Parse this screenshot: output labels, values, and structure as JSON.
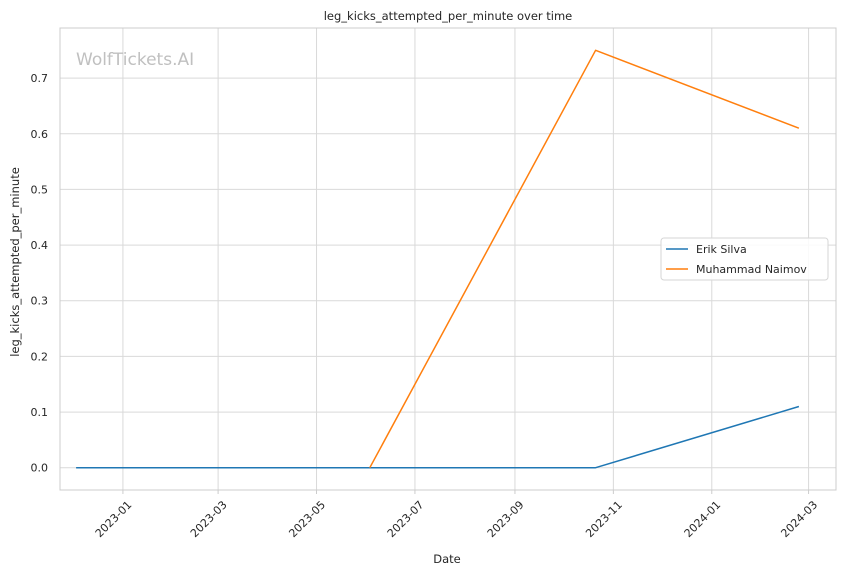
{
  "chart_data": {
    "type": "line",
    "title": "leg_kicks_attempted_per_minute over time",
    "xlabel": "Date",
    "ylabel": "leg_kicks_attempted_per_minute",
    "watermark": "WolfTickets.AI",
    "grid": true,
    "legend_position": "center-right",
    "xlim": [
      "2022-11-23",
      "2024-03-18"
    ],
    "ylim": [
      -0.04,
      0.79
    ],
    "x_ticks": [
      "2023-01-01",
      "2023-03-01",
      "2023-05-01",
      "2023-07-01",
      "2023-09-01",
      "2023-11-01",
      "2024-01-01",
      "2024-03-01"
    ],
    "x_tick_labels": [
      "2023-01",
      "2023-03",
      "2023-05",
      "2023-07",
      "2023-09",
      "2023-11",
      "2024-01",
      "2024-03"
    ],
    "y_ticks": [
      0.0,
      0.1,
      0.2,
      0.3,
      0.4,
      0.5,
      0.6,
      0.7
    ],
    "y_tick_labels": [
      "0.0",
      "0.1",
      "0.2",
      "0.3",
      "0.4",
      "0.5",
      "0.6",
      "0.7"
    ],
    "series": [
      {
        "name": "Erik Silva",
        "color": "#1f77b4",
        "points": [
          {
            "x": "2022-12-03",
            "y": 0.0
          },
          {
            "x": "2023-06-03",
            "y": 0.0
          },
          {
            "x": "2023-10-21",
            "y": 0.0
          },
          {
            "x": "2024-02-24",
            "y": 0.11
          }
        ]
      },
      {
        "name": "Muhammad Naimov",
        "color": "#ff7f0e",
        "points": [
          {
            "x": "2023-06-03",
            "y": 0.0
          },
          {
            "x": "2023-10-21",
            "y": 0.75
          },
          {
            "x": "2024-02-24",
            "y": 0.61
          }
        ]
      }
    ]
  }
}
